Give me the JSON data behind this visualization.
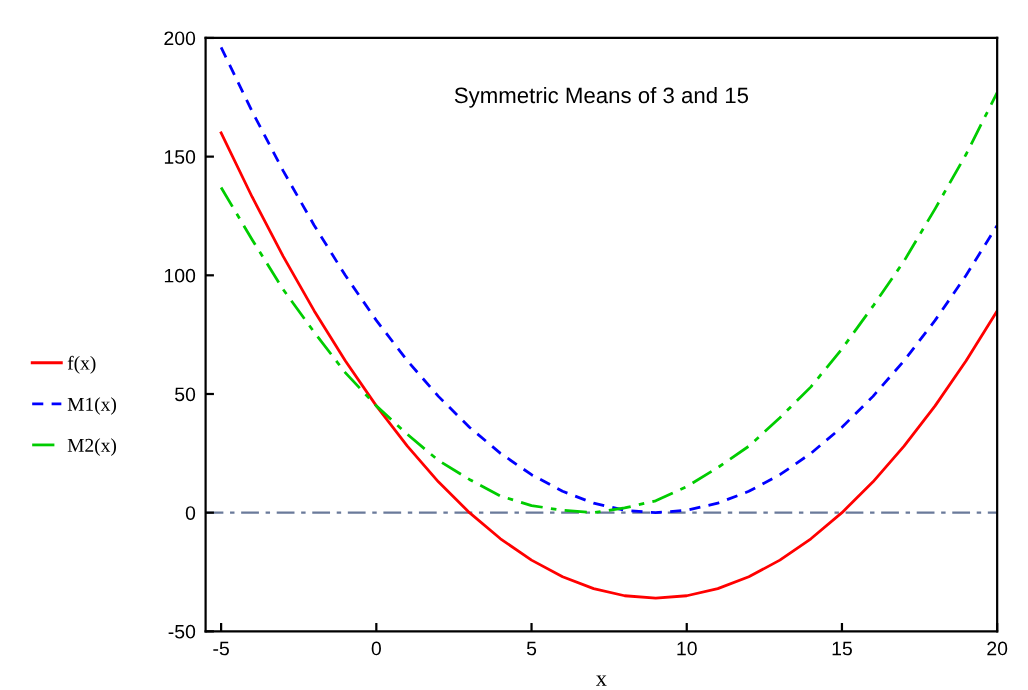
{
  "chart_data": {
    "type": "line",
    "title": "Symmetric Means of 3 and 15",
    "xlabel": "x",
    "x": [
      -5,
      -4,
      -3,
      -2,
      -1,
      0,
      1,
      2,
      3,
      4,
      5,
      6,
      7,
      8,
      9,
      10,
      11,
      12,
      13,
      14,
      15,
      16,
      17,
      18,
      19,
      20
    ],
    "series": [
      {
        "name": "f(x)",
        "color": "#ff0000",
        "line_style": "solid",
        "values": [
          160,
          133,
          108,
          85,
          64,
          45,
          28,
          13,
          0,
          -11,
          -20,
          -27,
          -32,
          -35,
          -36,
          -35,
          -32,
          -27,
          -20,
          -11,
          0,
          13,
          28,
          45,
          64,
          85
        ]
      },
      {
        "name": "M1(x)",
        "color": "#0000ff",
        "line_style": "dashed",
        "values": [
          196,
          169,
          144,
          121,
          100,
          81,
          64,
          49,
          36,
          25,
          16,
          9,
          4,
          1,
          0,
          1,
          4,
          9,
          16,
          25,
          36,
          49,
          64,
          81,
          100,
          121
        ]
      },
      {
        "name": "M2(x)",
        "color": "#00cc00",
        "line_style": "dashdot",
        "values": [
          137,
          115,
          94,
          76,
          59,
          45,
          33,
          22,
          14,
          7,
          3,
          1,
          0,
          2,
          5,
          11,
          19,
          28,
          40,
          53,
          69,
          87,
          106,
          128,
          151,
          177
        ]
      }
    ],
    "ref_lines": [
      {
        "axis": "y",
        "value": 0,
        "color": "#6a7a9a",
        "line_style": "dashdot"
      }
    ],
    "xlim": [
      -5.5,
      20
    ],
    "ylim": [
      -50,
      200
    ],
    "xticks": [
      -5,
      0,
      5,
      10,
      15,
      20
    ],
    "yticks": [
      -50,
      0,
      50,
      100,
      150,
      200
    ],
    "grid": false,
    "legend": "left",
    "marker": "none"
  }
}
